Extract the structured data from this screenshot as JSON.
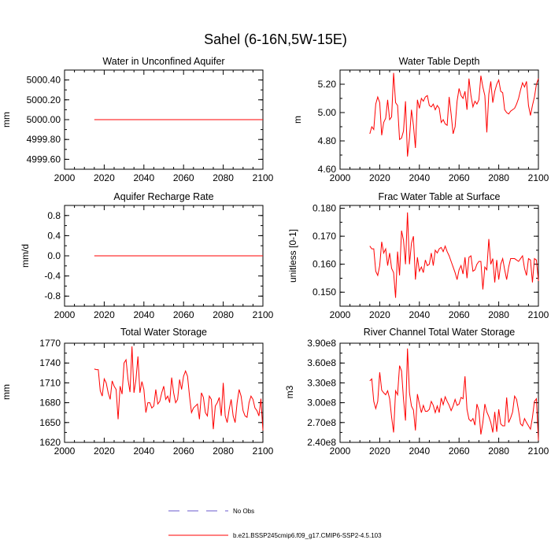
{
  "figure_title": "Sahel (6-16N,5W-15E)",
  "legend": [
    {
      "label": "No Obs",
      "color": "#6a5acd",
      "dash": true
    },
    {
      "label": "b.e21.BSSP245cmip6.f09_g17.CMIP6-SSP2-4.5.103",
      "color": "#ff0000",
      "dash": false
    }
  ],
  "chart_data": [
    {
      "type": "line",
      "title": "Water in Unconfined Aquifer",
      "ylabel": "mm",
      "xlim": [
        2000,
        2100
      ],
      "ylim": [
        4999.5,
        5000.5
      ],
      "xticks": [
        "2000",
        "2020",
        "2040",
        "2060",
        "2080",
        "2100"
      ],
      "yticks": [
        "4999.60",
        "4999.80",
        "5000.00",
        "5000.20",
        "5000.40"
      ],
      "series": [
        {
          "color": "#ff0000",
          "x_start": 2015,
          "x_end": 2100,
          "values": [
            5000.0,
            5000.0
          ]
        }
      ]
    },
    {
      "type": "line",
      "title": "Water Table Depth",
      "ylabel": "m",
      "xlim": [
        2000,
        2100
      ],
      "ylim": [
        4.6,
        5.3
      ],
      "xticks": [
        "2000",
        "2020",
        "2040",
        "2060",
        "2080",
        "2100"
      ],
      "yticks": [
        "4.60",
        "4.80",
        "5.00",
        "5.20"
      ],
      "series": [
        {
          "color": "#ff0000",
          "x_start": 2015,
          "x_end": 2100,
          "values": [
            4.85,
            4.9,
            4.88,
            5.06,
            5.11,
            5.07,
            4.84,
            4.93,
            4.96,
            5.09,
            4.95,
            4.97,
            5.28,
            5.07,
            5.05,
            4.81,
            4.82,
            4.87,
            5.08,
            4.69,
            4.82,
            5.02,
            4.91,
            4.75,
            5.09,
            5.03,
            5.1,
            5.08,
            5.11,
            5.12,
            5.05,
            5.04,
            5.06,
            5.02,
            5.05,
            5.03,
            4.93,
            4.95,
            4.92,
            4.91,
            5.11,
            4.99,
            4.85,
            4.9,
            5.08,
            5.17,
            5.12,
            5.1,
            5.15,
            5.02,
            5.24,
            5.12,
            5.04,
            5.08,
            5.06,
            5.09,
            5.26,
            5.18,
            5.12,
            4.86,
            5.13,
            5.22,
            5.07,
            5.15,
            5.2,
            5.23,
            5.15,
            5.14,
            5.02,
            5.0,
            4.99,
            5.01,
            5.02,
            5.03,
            5.06,
            5.1,
            5.16,
            5.21,
            5.18,
            5.22,
            5.05,
            4.98,
            5.05,
            5.11,
            5.2,
            5.24
          ]
        }
      ]
    },
    {
      "type": "line",
      "title": "Aquifer Recharge Rate",
      "ylabel": "mm/d",
      "xlim": [
        2000,
        2100
      ],
      "ylim": [
        -1.0,
        1.0
      ],
      "xticks": [
        "2000",
        "2020",
        "2040",
        "2060",
        "2080",
        "2100"
      ],
      "yticks": [
        "-0.8",
        "-0.4",
        "0.0",
        "0.4",
        "0.8"
      ],
      "series": [
        {
          "color": "#ff0000",
          "x_start": 2015,
          "x_end": 2100,
          "values": [
            0.0,
            0.0
          ]
        }
      ]
    },
    {
      "type": "line",
      "title": "Frac Water Table at Surface",
      "ylabel": "unitless [0-1]",
      "xlim": [
        2000,
        2100
      ],
      "ylim": [
        0.145,
        0.181
      ],
      "xticks": [
        "2000",
        "2020",
        "2040",
        "2060",
        "2080",
        "2100"
      ],
      "yticks": [
        "0.150",
        "0.160",
        "0.170",
        "0.180"
      ],
      "series": [
        {
          "color": "#ff0000",
          "x_start": 2015,
          "x_end": 2100,
          "values": [
            0.1665,
            0.1655,
            0.1655,
            0.1575,
            0.156,
            0.1595,
            0.168,
            0.164,
            0.1655,
            0.1595,
            0.164,
            0.1585,
            0.157,
            0.148,
            0.1645,
            0.156,
            0.172,
            0.1685,
            0.16,
            0.1785,
            0.16,
            0.1675,
            0.17,
            0.1545,
            0.1625,
            0.1575,
            0.159,
            0.157,
            0.1615,
            0.1595,
            0.16,
            0.164,
            0.1595,
            0.165,
            0.164,
            0.1655,
            0.166,
            0.1645,
            0.1665,
            0.1645,
            0.163,
            0.161,
            0.159,
            0.157,
            0.1545,
            0.158,
            0.1595,
            0.1565,
            0.1625,
            0.155,
            0.1625,
            0.163,
            0.1575,
            0.158,
            0.16,
            0.161,
            0.161,
            0.151,
            0.159,
            0.158,
            0.169,
            0.16,
            0.162,
            0.1535,
            0.1615,
            0.1545,
            0.16,
            0.162,
            0.158,
            0.1545,
            0.159,
            0.162,
            0.162,
            0.162,
            0.1615,
            0.161,
            0.162,
            0.163,
            0.1585,
            0.156,
            0.162,
            0.1615,
            0.1535,
            0.162,
            0.1615,
            0.154
          ]
        }
      ]
    },
    {
      "type": "line",
      "title": "Total Water Storage",
      "ylabel": "mm",
      "xlim": [
        2000,
        2100
      ],
      "ylim": [
        1620,
        1770
      ],
      "xticks": [
        "2000",
        "2020",
        "2040",
        "2060",
        "2080",
        "2100"
      ],
      "yticks": [
        "1620",
        "1650",
        "1680",
        "1710",
        "1740",
        "1770"
      ],
      "series": [
        {
          "color": "#ff0000",
          "x_start": 2015,
          "x_end": 2100,
          "values": [
            1731,
            1730,
            1730,
            1698,
            1690,
            1716,
            1710,
            1695,
            1685,
            1713,
            1705,
            1700,
            1655,
            1705,
            1693,
            1740,
            1745,
            1715,
            1696,
            1765,
            1695,
            1715,
            1750,
            1695,
            1712,
            1700,
            1665,
            1680,
            1680,
            1672,
            1675,
            1700,
            1678,
            1682,
            1695,
            1705,
            1685,
            1690,
            1680,
            1718,
            1695,
            1680,
            1685,
            1715,
            1700,
            1720,
            1728,
            1720,
            1690,
            1665,
            1672,
            1675,
            1678,
            1655,
            1695,
            1688,
            1665,
            1660,
            1690,
            1685,
            1640,
            1675,
            1680,
            1688,
            1660,
            1710,
            1660,
            1650,
            1670,
            1685,
            1660,
            1650,
            1680,
            1700,
            1690,
            1668,
            1660,
            1658,
            1680,
            1690,
            1685,
            1672,
            1668,
            1660,
            1686,
            1638
          ]
        }
      ]
    },
    {
      "type": "line",
      "title": "River Channel Total Water Storage",
      "ylabel": "m3",
      "xlim": [
        2000,
        2100
      ],
      "ylim": [
        240000000.0,
        390000000.0
      ],
      "xticks": [
        "2000",
        "2020",
        "2040",
        "2060",
        "2080",
        "2100"
      ],
      "yticks": [
        "2.40e8",
        "2.70e8",
        "3.00e8",
        "3.30e8",
        "3.60e8",
        "3.90e8"
      ],
      "series": [
        {
          "color": "#ff0000",
          "x_start": 2015,
          "x_end": 2100,
          "values": [
            333000000.0,
            336000000.0,
            302000000.0,
            291000000.0,
            302000000.0,
            346000000.0,
            319000000.0,
            315000000.0,
            312000000.0,
            318000000.0,
            306000000.0,
            278000000.0,
            255000000.0,
            318000000.0,
            312000000.0,
            356000000.0,
            348000000.0,
            305000000.0,
            273000000.0,
            382000000.0,
            315000000.0,
            295000000.0,
            289000000.0,
            258000000.0,
            313000000.0,
            298000000.0,
            285000000.0,
            296000000.0,
            287000000.0,
            287000000.0,
            290000000.0,
            302000000.0,
            296000000.0,
            285000000.0,
            295000000.0,
            285000000.0,
            307000000.0,
            297000000.0,
            309000000.0,
            302000000.0,
            296000000.0,
            288000000.0,
            295000000.0,
            305000000.0,
            296000000.0,
            298000000.0,
            308000000.0,
            306000000.0,
            340000000.0,
            290000000.0,
            275000000.0,
            272000000.0,
            276000000.0,
            266000000.0,
            298000000.0,
            288000000.0,
            252000000.0,
            270000000.0,
            298000000.0,
            286000000.0,
            279000000.0,
            270000000.0,
            255000000.0,
            286000000.0,
            256000000.0,
            290000000.0,
            268000000.0,
            265000000.0,
            265000000.0,
            308000000.0,
            270000000.0,
            277000000.0,
            286000000.0,
            310000000.0,
            305000000.0,
            288000000.0,
            268000000.0,
            265000000.0,
            276000000.0,
            270000000.0,
            265000000.0,
            260000000.0,
            278000000.0,
            302000000.0,
            306000000.0,
            243000000.0
          ]
        }
      ]
    }
  ]
}
